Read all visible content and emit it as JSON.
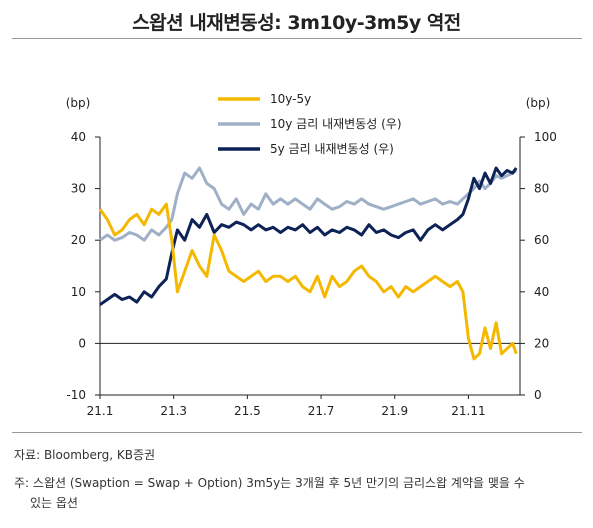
{
  "title": "스왑션 내재변동성: 3m10y-3m5y 역전",
  "footer": {
    "source": "자료: Bloomberg, KB증권",
    "note_line1": "주: 스왑션 (Swaption = Swap + Option) 3m5y는 3개월 후 5년 만기의 금리스왑 계약을 맺을 수",
    "note_line2": "있는 옵션"
  },
  "colors": {
    "spread": "#f5b800",
    "vol10y": "#9fb0c6",
    "vol5y": "#0d2257",
    "axis": "#222222"
  },
  "chart_data": {
    "type": "line",
    "x_tick_labels": [
      "21.1",
      "21.3",
      "21.5",
      "21.7",
      "21.9",
      "21.11"
    ],
    "left_axis": {
      "unit": "(bp)",
      "ylim": [
        -10,
        40
      ],
      "ticks": [
        "-10",
        "0",
        "10",
        "20",
        "30",
        "40"
      ]
    },
    "right_axis": {
      "unit": "(bp)",
      "ylim": [
        0,
        100
      ],
      "ticks": [
        "0",
        "20",
        "40",
        "60",
        "80",
        "100"
      ]
    },
    "x_range": [
      0,
      11.4
    ],
    "legend_position": "top-center",
    "series": [
      {
        "name": "10y-5y",
        "axis": "left",
        "color": "#f5b800",
        "x": [
          0.0,
          0.2,
          0.4,
          0.6,
          0.8,
          1.0,
          1.2,
          1.4,
          1.6,
          1.8,
          1.95,
          2.1,
          2.3,
          2.5,
          2.7,
          2.9,
          3.1,
          3.3,
          3.5,
          3.7,
          3.9,
          4.1,
          4.3,
          4.5,
          4.7,
          4.9,
          5.1,
          5.3,
          5.5,
          5.7,
          5.9,
          6.1,
          6.3,
          6.5,
          6.7,
          6.9,
          7.1,
          7.3,
          7.5,
          7.7,
          7.9,
          8.1,
          8.3,
          8.5,
          8.7,
          8.9,
          9.1,
          9.3,
          9.5,
          9.7,
          9.85,
          10.0,
          10.15,
          10.3,
          10.45,
          10.6,
          10.75,
          10.9,
          11.05,
          11.2,
          11.3
        ],
        "values": [
          26,
          24,
          21,
          22,
          24,
          25,
          23,
          26,
          25,
          27,
          20,
          10,
          14,
          18,
          15,
          13,
          21,
          18,
          14,
          13,
          12,
          13,
          14,
          12,
          13,
          13,
          12,
          13,
          11,
          10,
          13,
          9,
          13,
          11,
          12,
          14,
          15,
          13,
          12,
          10,
          11,
          9,
          11,
          10,
          11,
          12,
          13,
          12,
          11,
          12,
          10,
          1,
          -3,
          -2,
          3,
          -1,
          4,
          -2,
          -1,
          0,
          -2
        ]
      },
      {
        "name": "10y 금리 내재변동성 (우)",
        "axis": "right",
        "color": "#9fb0c6",
        "x": [
          0.0,
          0.2,
          0.4,
          0.6,
          0.8,
          1.0,
          1.2,
          1.4,
          1.6,
          1.8,
          1.95,
          2.1,
          2.3,
          2.5,
          2.7,
          2.9,
          3.1,
          3.3,
          3.5,
          3.7,
          3.9,
          4.1,
          4.3,
          4.5,
          4.7,
          4.9,
          5.1,
          5.3,
          5.5,
          5.7,
          5.9,
          6.1,
          6.3,
          6.5,
          6.7,
          6.9,
          7.1,
          7.3,
          7.5,
          7.7,
          7.9,
          8.1,
          8.3,
          8.5,
          8.7,
          8.9,
          9.1,
          9.3,
          9.5,
          9.7,
          9.85,
          10.0,
          10.15,
          10.3,
          10.45,
          10.6,
          10.75,
          10.9,
          11.05,
          11.2,
          11.3
        ],
        "values": [
          60,
          62,
          60,
          61,
          63,
          62,
          60,
          64,
          62,
          65,
          68,
          78,
          86,
          84,
          88,
          82,
          80,
          74,
          72,
          76,
          70,
          74,
          72,
          78,
          74,
          76,
          74,
          76,
          74,
          72,
          76,
          74,
          72,
          73,
          75,
          74,
          76,
          74,
          73,
          72,
          73,
          74,
          75,
          76,
          74,
          75,
          76,
          74,
          75,
          74,
          76,
          78,
          80,
          83,
          80,
          82,
          85,
          84,
          85,
          86,
          87
        ]
      },
      {
        "name": "5y 금리 내재변동성 (우)",
        "axis": "right",
        "color": "#0d2257",
        "x": [
          0.0,
          0.2,
          0.4,
          0.6,
          0.8,
          1.0,
          1.2,
          1.4,
          1.6,
          1.8,
          1.95,
          2.1,
          2.3,
          2.5,
          2.7,
          2.9,
          3.1,
          3.3,
          3.5,
          3.7,
          3.9,
          4.1,
          4.3,
          4.5,
          4.7,
          4.9,
          5.1,
          5.3,
          5.5,
          5.7,
          5.9,
          6.1,
          6.3,
          6.5,
          6.7,
          6.9,
          7.1,
          7.3,
          7.5,
          7.7,
          7.9,
          8.1,
          8.3,
          8.5,
          8.7,
          8.9,
          9.1,
          9.3,
          9.5,
          9.7,
          9.85,
          10.0,
          10.15,
          10.3,
          10.45,
          10.6,
          10.75,
          10.9,
          11.05,
          11.2,
          11.3
        ],
        "values": [
          35,
          37,
          39,
          37,
          38,
          36,
          40,
          38,
          42,
          45,
          55,
          64,
          60,
          68,
          65,
          70,
          63,
          66,
          65,
          67,
          66,
          64,
          66,
          64,
          65,
          63,
          65,
          64,
          66,
          63,
          65,
          62,
          64,
          63,
          65,
          64,
          62,
          66,
          63,
          64,
          62,
          61,
          63,
          64,
          60,
          64,
          66,
          64,
          66,
          68,
          70,
          76,
          84,
          80,
          86,
          82,
          88,
          85,
          87,
          86,
          88
        ]
      }
    ]
  }
}
